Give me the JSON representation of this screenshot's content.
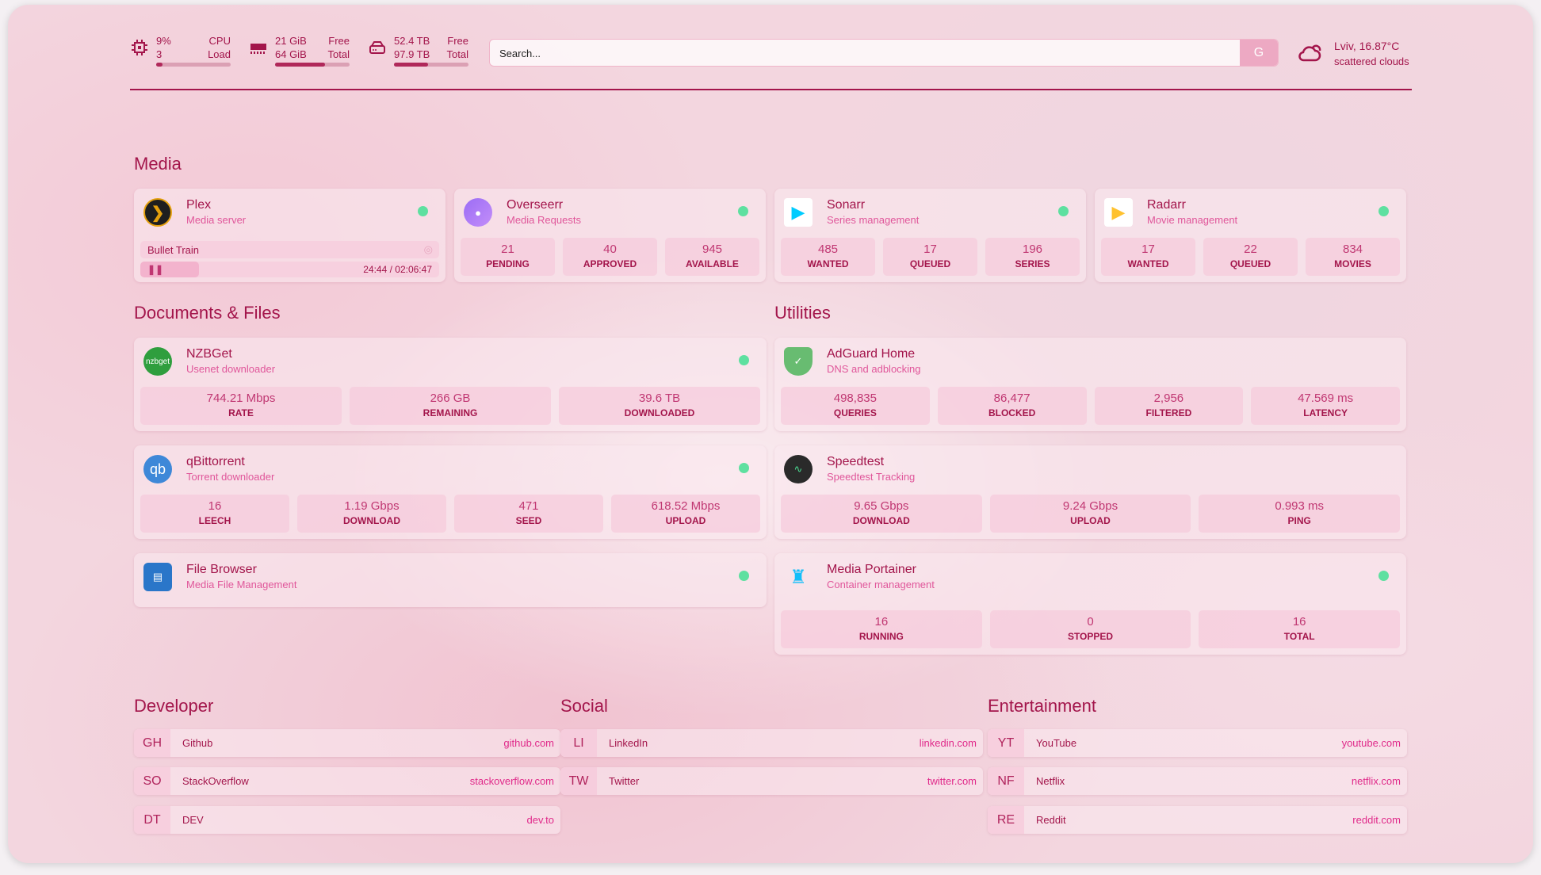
{
  "resources": {
    "cpu": {
      "icon": "cpu-icon",
      "value": "9%",
      "sub": "3",
      "label1": "CPU",
      "label2": "Load",
      "percent": 9
    },
    "ram": {
      "icon": "memory-icon",
      "value": "21 GiB",
      "sub": "64 GiB",
      "label1": "Free",
      "label2": "Total",
      "percent": 67
    },
    "disk": {
      "icon": "disk-icon",
      "value": "52.4 TB",
      "sub": "97.9 TB",
      "label1": "Free",
      "label2": "Total",
      "percent": 46
    }
  },
  "search": {
    "placeholder": "Search...",
    "button": "G"
  },
  "weather": {
    "icon": "cloud-icon",
    "location": "Lviv, 16.87°C",
    "condition": "scattered clouds"
  },
  "groups": {
    "media": "Media",
    "docs": "Documents & Files",
    "utilities": "Utilities",
    "developer": "Developer",
    "social": "Social",
    "entertainment": "Entertainment"
  },
  "plex": {
    "name": "Plex",
    "desc": "Media server",
    "now_playing": "Bullet Train",
    "time": "24:44 / 02:06:47",
    "progress": 0.195
  },
  "services": [
    {
      "id": "overseerr",
      "name": "Overseerr",
      "desc": "Media Requests",
      "icon": "overseerr-icon",
      "stats": [
        {
          "v": "21",
          "l": "PENDING"
        },
        {
          "v": "40",
          "l": "APPROVED"
        },
        {
          "v": "945",
          "l": "AVAILABLE"
        }
      ]
    },
    {
      "id": "sonarr",
      "name": "Sonarr",
      "desc": "Series management",
      "icon": "sonarr-icon",
      "stats": [
        {
          "v": "485",
          "l": "WANTED"
        },
        {
          "v": "17",
          "l": "QUEUED"
        },
        {
          "v": "196",
          "l": "SERIES"
        }
      ]
    },
    {
      "id": "radarr",
      "name": "Radarr",
      "desc": "Movie management",
      "icon": "radarr-icon",
      "stats": [
        {
          "v": "17",
          "l": "WANTED"
        },
        {
          "v": "22",
          "l": "QUEUED"
        },
        {
          "v": "834",
          "l": "MOVIES"
        }
      ]
    },
    {
      "id": "nzbget",
      "name": "NZBGet",
      "desc": "Usenet downloader",
      "icon": "nzbget-icon",
      "stats": [
        {
          "v": "744.21 Mbps",
          "l": "RATE"
        },
        {
          "v": "266 GB",
          "l": "REMAINING"
        },
        {
          "v": "39.6 TB",
          "l": "DOWNLOADED"
        }
      ]
    },
    {
      "id": "qbittorrent",
      "name": "qBittorrent",
      "desc": "Torrent downloader",
      "icon": "qbittorrent-icon",
      "stats": [
        {
          "v": "16",
          "l": "LEECH"
        },
        {
          "v": "1.19 Gbps",
          "l": "DOWNLOAD"
        },
        {
          "v": "471",
          "l": "SEED"
        },
        {
          "v": "618.52 Mbps",
          "l": "UPLOAD"
        }
      ]
    },
    {
      "id": "filebrowser",
      "name": "File Browser",
      "desc": "Media File Management",
      "icon": "file-browser-icon",
      "stats": []
    },
    {
      "id": "adguard",
      "name": "AdGuard Home",
      "desc": "DNS and adblocking",
      "icon": "adguard-shield-icon",
      "stats": [
        {
          "v": "498,835",
          "l": "QUERIES"
        },
        {
          "v": "86,477",
          "l": "BLOCKED"
        },
        {
          "v": "2,956",
          "l": "FILTERED"
        },
        {
          "v": "47.569 ms",
          "l": "LATENCY"
        }
      ]
    },
    {
      "id": "speedtest",
      "name": "Speedtest",
      "desc": "Speedtest Tracking",
      "icon": "speedtest-icon",
      "stats": [
        {
          "v": "9.65 Gbps",
          "l": "DOWNLOAD"
        },
        {
          "v": "9.24 Gbps",
          "l": "UPLOAD"
        },
        {
          "v": "0.993 ms",
          "l": "PING"
        }
      ]
    },
    {
      "id": "portainer",
      "name": "Media Portainer",
      "desc": "Container management",
      "icon": "portainer-icon",
      "stats": [
        {
          "v": "16",
          "l": "RUNNING"
        },
        {
          "v": "0",
          "l": "STOPPED"
        },
        {
          "v": "16",
          "l": "TOTAL"
        }
      ]
    }
  ],
  "bookmarks": [
    [
      {
        "abbr": "GH",
        "name": "Github",
        "url": "github.com"
      },
      {
        "abbr": "SO",
        "name": "StackOverflow",
        "url": "stackoverflow.com"
      },
      {
        "abbr": "DT",
        "name": "DEV",
        "url": "dev.to"
      }
    ],
    [
      {
        "abbr": "LI",
        "name": "LinkedIn",
        "url": "linkedin.com"
      },
      {
        "abbr": "TW",
        "name": "Twitter",
        "url": "twitter.com"
      }
    ],
    [
      {
        "abbr": "YT",
        "name": "YouTube",
        "url": "youtube.com"
      },
      {
        "abbr": "NF",
        "name": "Netflix",
        "url": "netflix.com"
      },
      {
        "abbr": "RE",
        "name": "Reddit",
        "url": "reddit.com"
      }
    ]
  ],
  "colors": {
    "accent": "#a3154b",
    "subtitle": "#e0569a",
    "status_online": "#5ee0a0"
  }
}
